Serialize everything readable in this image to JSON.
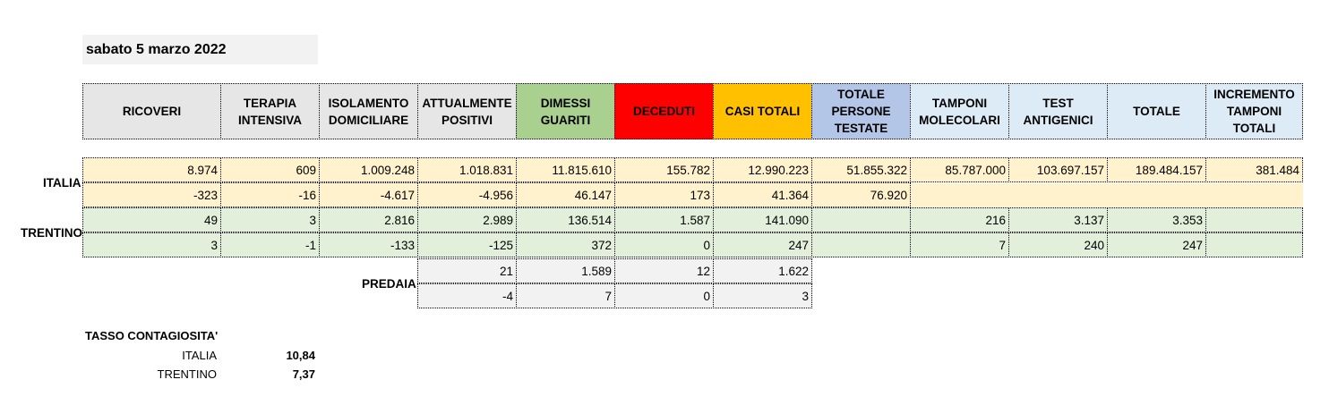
{
  "date": "sabato 5 marzo 2022",
  "colors": {
    "header_grey": "#e7e6e6",
    "dimessi": "#a9d08e",
    "deceduti": "#ff0000",
    "casi": "#ffc000",
    "persone": "#b4c6e7",
    "tamponi": "#ddebf7",
    "italia_bg": "#fff2cc",
    "trentino_bg": "#e2efda",
    "predaia_bg": "#f2f2f2"
  },
  "headers": [
    "RICOVERI",
    "TERAPIA\nINTENSIVA",
    "ISOLAMENTO\nDOMICILIARE",
    "ATTUALMENTE\nPOSITIVI",
    "DIMESSI\nGUARITI",
    "DECEDUTI",
    "CASI TOTALI",
    "TOTALE\nPERSONE\nTESTATE",
    "TAMPONI\nMOLECOLARI",
    "TEST\nANTIGENICI",
    "TOTALE",
    "INCREMENTO\nTAMPONI\nTOTALI"
  ],
  "labels": {
    "italia": "ITALIA",
    "trentino": "TRENTINO",
    "predaia": "PREDAIA"
  },
  "italia": {
    "totals": [
      "8.974",
      "609",
      "1.009.248",
      "1.018.831",
      "11.815.610",
      "155.782",
      "12.990.223",
      "51.855.322",
      "85.787.000",
      "103.697.157",
      "189.484.157",
      "381.484"
    ],
    "deltas": [
      "-323",
      "-16",
      "-4.617",
      "-4.956",
      "46.147",
      "173",
      "41.364",
      "76.920",
      "",
      "",
      "",
      ""
    ]
  },
  "trentino": {
    "totals": [
      "49",
      "3",
      "2.816",
      "2.989",
      "136.514",
      "1.587",
      "141.090",
      "",
      "216",
      "3.137",
      "3.353",
      ""
    ],
    "deltas": [
      "3",
      "-1",
      "-133",
      "-125",
      "372",
      "0",
      "247",
      "",
      "7",
      "240",
      "247",
      ""
    ]
  },
  "predaia": {
    "totals": [
      "21",
      "1.589",
      "12",
      "1.622"
    ],
    "deltas": [
      "-4",
      "7",
      "0",
      "3"
    ]
  },
  "tasso": {
    "title": "TASSO CONTAGIOSITA'",
    "italia_label": "ITALIA",
    "italia_value": "10,84",
    "trentino_label": "TRENTINO",
    "trentino_value": "7,37"
  }
}
